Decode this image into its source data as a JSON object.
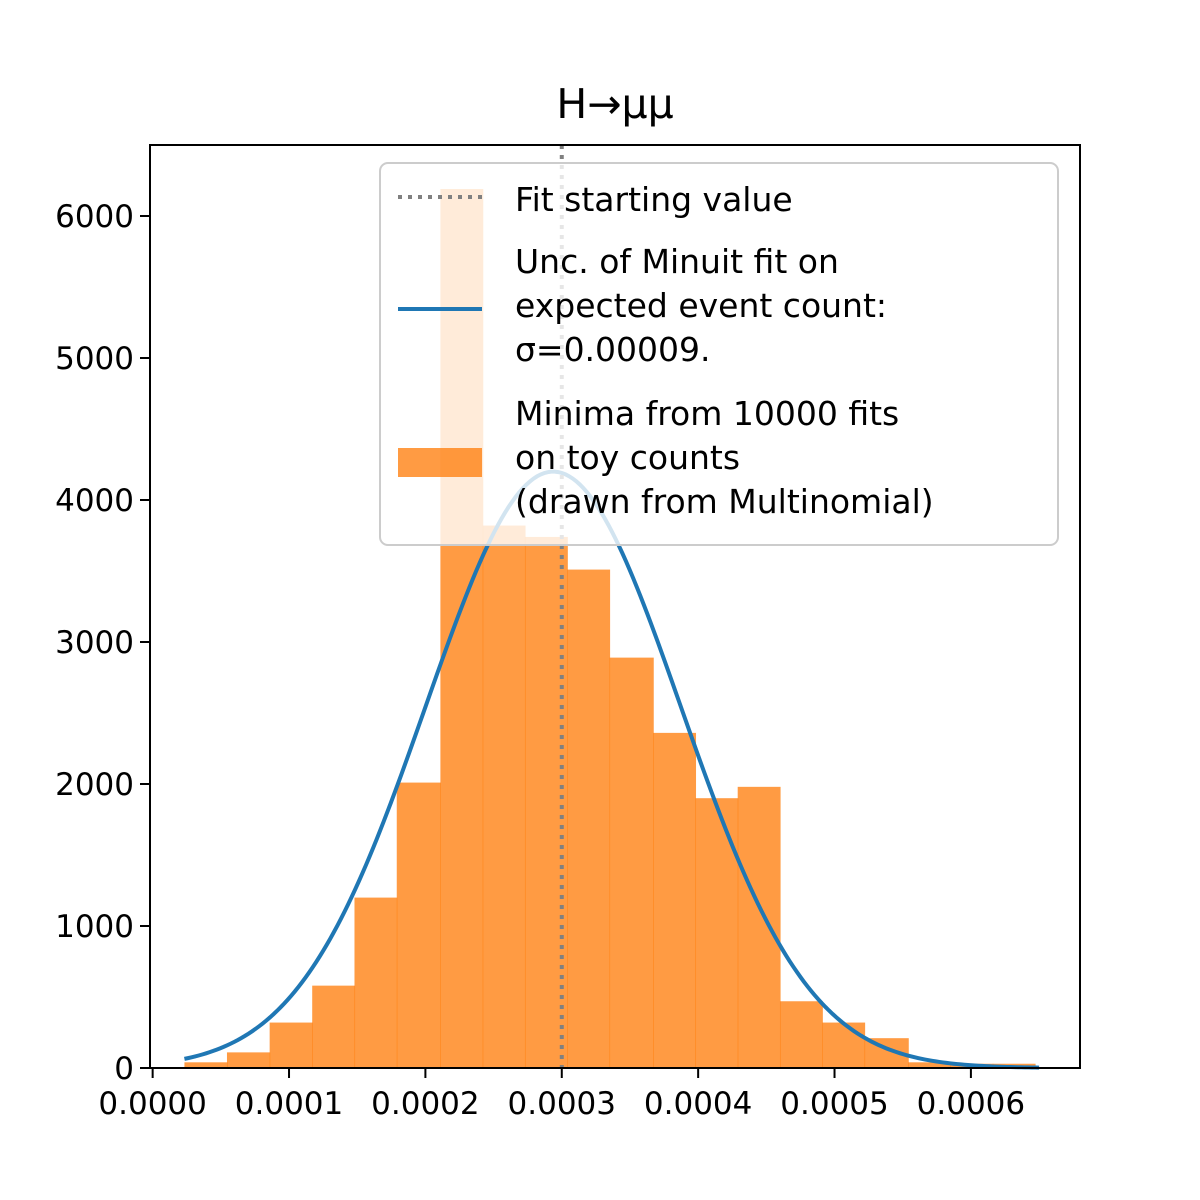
{
  "chart_data": {
    "type": "bar",
    "title": "H→μμ",
    "xlabel": "",
    "ylabel": "",
    "xlim": [
      -1.94e-06,
      0.00068
    ],
    "ylim": [
      0,
      6500
    ],
    "x_ticks": [
      0.0,
      0.0001,
      0.0002,
      0.0003,
      0.0004,
      0.0005,
      0.0006
    ],
    "x_tick_labels": [
      "0.0000",
      "0.0001",
      "0.0002",
      "0.0003",
      "0.0004",
      "0.0005",
      "0.0006"
    ],
    "y_ticks": [
      0,
      1000,
      2000,
      3000,
      4000,
      5000,
      6000
    ],
    "y_tick_labels": [
      "0",
      "1000",
      "2000",
      "3000",
      "4000",
      "5000",
      "6000"
    ],
    "grid": false,
    "legend_position": "top-right",
    "histogram": {
      "name": "Minima from 10000 fits\non toy counts\n(drawn from Multinomial)",
      "color": "#ff7f0e",
      "opacity": 0.78,
      "bin_edges": [
        2.33e-05,
        5.45e-05,
        8.58e-05,
        0.000117,
        0.000148,
        0.000179,
        0.000211,
        0.000242,
        0.000273,
        0.000304,
        0.000335,
        0.000367,
        0.000398,
        0.000429,
        0.00046,
        0.000491,
        0.000522,
        0.000554,
        0.000585,
        0.000616,
        0.000647
      ],
      "counts": [
        40,
        110,
        320,
        580,
        1200,
        2010,
        6190,
        3820,
        3740,
        3510,
        2890,
        2360,
        1900,
        1980,
        470,
        320,
        210,
        40,
        30,
        30
      ]
    },
    "gaussian": {
      "name": "Unc. of Minuit fit on\nexpected event count:\nσ=0.00009.",
      "color": "#1f77b4",
      "mean": 0.0002937,
      "sigma": 9.35e-05,
      "amplitude": 4200,
      "x_range": [
        2.33e-05,
        0.00065
      ]
    },
    "starting_value": {
      "name": "Fit starting value",
      "x": 0.0003,
      "color": "#808080"
    }
  }
}
